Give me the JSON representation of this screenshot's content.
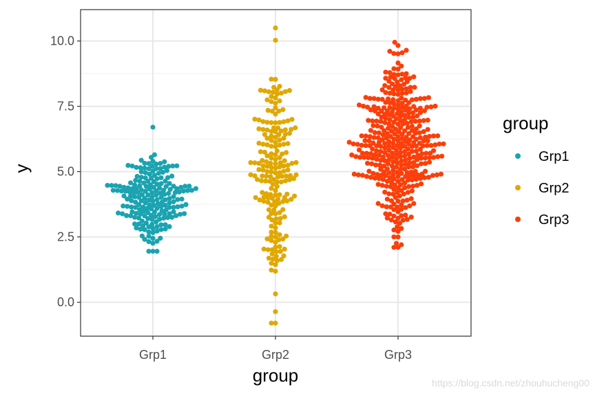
{
  "chart_data": {
    "type": "scatter",
    "subtype": "beeswarm",
    "title": "",
    "xlabel": "group",
    "ylabel": "y",
    "categories": [
      "Grp1",
      "Grp2",
      "Grp3"
    ],
    "ylim": [
      -1.3,
      11.2
    ],
    "yticks": [
      0.0,
      2.5,
      5.0,
      7.5,
      10.0
    ],
    "ytick_labels": [
      "0.0",
      "2.5",
      "5.0",
      "7.5",
      "10.0"
    ],
    "grid": true,
    "legend": {
      "title": "group",
      "position": "right",
      "entries": [
        "Grp1",
        "Grp2",
        "Grp3"
      ]
    },
    "series": [
      {
        "name": "Grp1",
        "color": "#1aa3b0",
        "n": 200,
        "min": 1.95,
        "max": 6.7,
        "center": 4.0
      },
      {
        "name": "Grp2",
        "color": "#e0a800",
        "n": 200,
        "min": -0.8,
        "max": 10.5,
        "center": 5.0
      },
      {
        "name": "Grp3",
        "color": "#fb3f0a",
        "n": 400,
        "min": 2.1,
        "max": 9.95,
        "center": 6.0
      }
    ]
  },
  "watermark": "https://blog.csdn.net/zhouhucheng00"
}
